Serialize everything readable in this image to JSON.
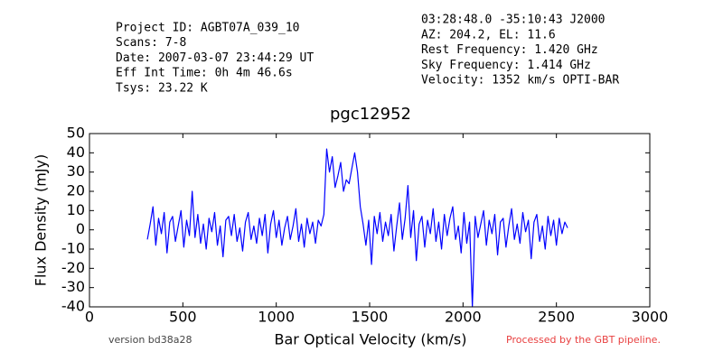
{
  "header": {
    "left": [
      "Project ID: AGBT07A_039_10",
      "Scans: 7-8",
      "Date: 2007-03-07 23:44:29 UT",
      "Eff Int Time: 0h 4m 46.6s",
      "Tsys: 23.22 K"
    ],
    "right": [
      "03:28:48.0 -35:10:43 J2000",
      "AZ: 204.2, EL: 11.6",
      "Rest Frequency:   1.420 GHz",
      "Sky Frequency:    1.414 GHz",
      "Velocity: 1352 km/s OPTI-BAR"
    ]
  },
  "footer": {
    "version": "version bd38a28",
    "pipeline": "Processed by the GBT pipeline."
  },
  "chart_data": {
    "type": "line",
    "title": "pgc12952",
    "x_label": "Bar Optical Velocity (km/s)",
    "y_label": "Flux Density (mJy)",
    "xlim": [
      0,
      3000
    ],
    "xticks": [
      0,
      500,
      1000,
      1500,
      2000,
      2500,
      3000
    ],
    "ylim": [
      -40,
      50
    ],
    "yticks": [
      -40,
      -30,
      -20,
      -10,
      0,
      10,
      20,
      30,
      40,
      50
    ],
    "series": [
      {
        "color": "#0000ff",
        "x": [
          310,
          325,
          340,
          355,
          370,
          385,
          400,
          415,
          430,
          445,
          460,
          475,
          490,
          505,
          520,
          535,
          550,
          565,
          580,
          595,
          610,
          625,
          640,
          655,
          670,
          685,
          700,
          715,
          730,
          745,
          760,
          775,
          790,
          805,
          820,
          835,
          850,
          865,
          880,
          895,
          910,
          925,
          940,
          955,
          970,
          985,
          1000,
          1015,
          1030,
          1045,
          1060,
          1075,
          1090,
          1105,
          1120,
          1135,
          1150,
          1165,
          1180,
          1195,
          1210,
          1225,
          1240,
          1255,
          1270,
          1285,
          1300,
          1315,
          1330,
          1345,
          1360,
          1375,
          1390,
          1405,
          1420,
          1435,
          1450,
          1465,
          1480,
          1495,
          1510,
          1525,
          1540,
          1555,
          1570,
          1585,
          1600,
          1615,
          1630,
          1645,
          1660,
          1675,
          1690,
          1705,
          1720,
          1735,
          1750,
          1765,
          1780,
          1795,
          1810,
          1825,
          1840,
          1855,
          1870,
          1885,
          1900,
          1915,
          1930,
          1945,
          1960,
          1975,
          1990,
          2005,
          2020,
          2035,
          2050,
          2065,
          2080,
          2095,
          2110,
          2125,
          2140,
          2155,
          2170,
          2185,
          2200,
          2215,
          2230,
          2245,
          2260,
          2275,
          2290,
          2305,
          2320,
          2335,
          2350,
          2365,
          2380,
          2395,
          2410,
          2425,
          2440,
          2455,
          2470,
          2485,
          2500,
          2515,
          2530,
          2545,
          2560
        ],
        "values": [
          -5,
          3,
          12,
          -8,
          6,
          -2,
          9,
          -12,
          4,
          7,
          -6,
          2,
          10,
          -9,
          5,
          -3,
          20,
          -4,
          8,
          -7,
          3,
          -10,
          6,
          -1,
          9,
          -8,
          2,
          -14,
          5,
          7,
          -3,
          8,
          -6,
          1,
          -11,
          4,
          9,
          -5,
          2,
          -7,
          6,
          -3,
          8,
          -12,
          3,
          10,
          -4,
          5,
          -8,
          1,
          7,
          -5,
          2,
          11,
          -6,
          3,
          -9,
          6,
          -2,
          4,
          -7,
          5,
          2,
          8,
          42,
          30,
          38,
          22,
          28,
          35,
          20,
          26,
          24,
          32,
          40,
          30,
          12,
          3,
          -8,
          5,
          -18,
          7,
          -2,
          9,
          -6,
          4,
          -3,
          8,
          -11,
          2,
          14,
          -5,
          6,
          23,
          -4,
          10,
          -16,
          3,
          7,
          -9,
          5,
          -2,
          11,
          -6,
          4,
          -10,
          8,
          -3,
          6,
          12,
          -5,
          2,
          -12,
          9,
          -7,
          4,
          -40,
          7,
          -4,
          3,
          10,
          -8,
          5,
          -2,
          8,
          -13,
          4,
          6,
          -9,
          2,
          11,
          -5,
          3,
          -7,
          9,
          -1,
          5,
          -15,
          4,
          8,
          -6,
          2,
          -10,
          7,
          -3,
          5,
          -8,
          6,
          -2,
          4,
          1
        ]
      }
    ]
  }
}
